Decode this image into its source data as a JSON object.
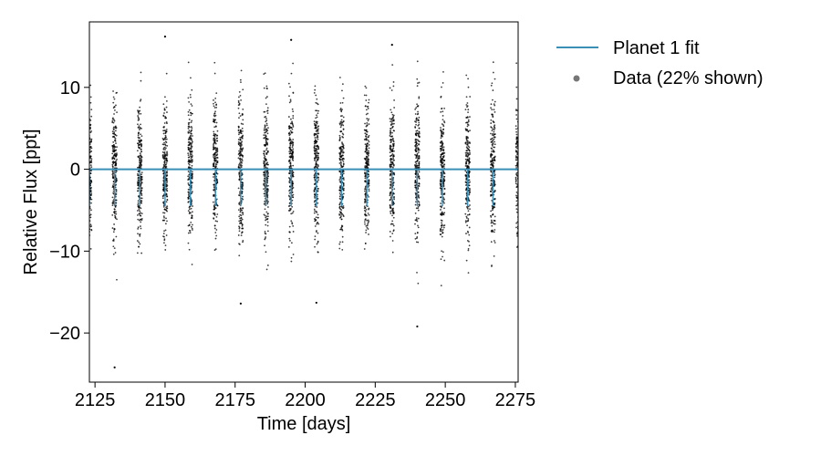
{
  "chart_data": {
    "type": "scatter",
    "xlabel": "Time [days]",
    "ylabel": "Relative Flux [ppt]",
    "xlim": [
      2123,
      2276
    ],
    "ylim": [
      -26,
      18
    ],
    "xticks": [
      2125,
      2150,
      2175,
      2200,
      2225,
      2250,
      2275
    ],
    "yticks": [
      -20,
      -10,
      0,
      10
    ],
    "ytick_labels": [
      "−20",
      "−10",
      "0",
      "10"
    ],
    "grid": false,
    "legend_position": "outside-right",
    "observation_times": [
      2123,
      2132,
      2141,
      2150,
      2159,
      2168,
      2177,
      2186,
      2195,
      2204,
      2213,
      2222,
      2231,
      2240,
      2249,
      2258,
      2267,
      2276
    ],
    "outliers": [
      {
        "x": 2132,
        "y": -24.2
      },
      {
        "x": 2150,
        "y": 16.2
      },
      {
        "x": 2195,
        "y": 15.8
      },
      {
        "x": 2231,
        "y": 15.2
      },
      {
        "x": 2240,
        "y": -19.2
      },
      {
        "x": 2177,
        "y": -16.4
      },
      {
        "x": 2204,
        "y": -16.3
      }
    ],
    "series": [
      {
        "name": "Planet 1 fit",
        "type": "line",
        "color": "#3a8fb7",
        "x": [
          2123,
          2276
        ],
        "y": [
          0,
          0
        ]
      },
      {
        "name": "Data (22% shown)",
        "type": "scatter",
        "color": "#000000"
      }
    ]
  }
}
